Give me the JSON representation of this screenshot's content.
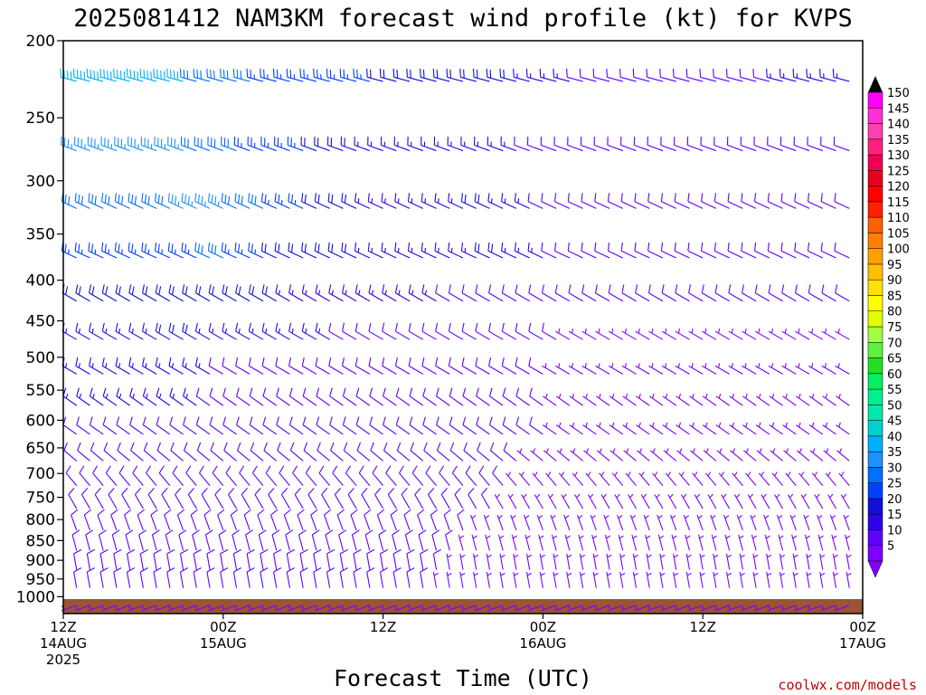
{
  "title": "2025081412 NAM3KM forecast wind profile (kt) for KVPS",
  "credit": "coolwx.com/models",
  "chart_data": {
    "type": "wind-barb time-height",
    "title": "2025081412 NAM3KM forecast wind profile (kt) for KVPS",
    "xlabel": "Forecast Time (UTC)",
    "ylabel": "",
    "units": "kt",
    "y_scale": "log-pressure (inverted)",
    "ylim": [
      1050,
      200
    ],
    "x_hours_range": [
      0,
      60
    ],
    "y_ticks": [
      200,
      250,
      300,
      350,
      400,
      450,
      500,
      550,
      600,
      650,
      700,
      750,
      800,
      850,
      900,
      950,
      1000
    ],
    "y_tick_labels": [
      "200",
      "250",
      "300",
      "350",
      "400",
      "450",
      "500",
      "550",
      "600",
      "650",
      "700",
      "750",
      "800",
      "850",
      "900",
      "950",
      "1000"
    ],
    "x_ticks": [
      {
        "hour": 0,
        "lines": [
          "12Z",
          "14AUG",
          "2025"
        ]
      },
      {
        "hour": 12,
        "lines": [
          "00Z",
          "15AUG"
        ]
      },
      {
        "hour": 24,
        "lines": [
          "12Z"
        ]
      },
      {
        "hour": 36,
        "lines": [
          "00Z",
          "16AUG"
        ]
      },
      {
        "hour": 48,
        "lines": [
          "12Z"
        ]
      },
      {
        "hour": 60,
        "lines": [
          "00Z",
          "17AUG"
        ]
      }
    ],
    "barb_times_hours": [
      1,
      2,
      3,
      4,
      5,
      6,
      7,
      8,
      9,
      10,
      11,
      12,
      13,
      14,
      15,
      16,
      17,
      18,
      19,
      20,
      21,
      22,
      23,
      24,
      25,
      26,
      27,
      28,
      29,
      30,
      31,
      32,
      33,
      34,
      35,
      36,
      37,
      38,
      39,
      40,
      41,
      42,
      43,
      44,
      45,
      46,
      47,
      48,
      49,
      50,
      51,
      52,
      53,
      54,
      55,
      56,
      57,
      58,
      59,
      60
    ],
    "barb_levels_hpa": [
      225,
      275,
      325,
      375,
      425,
      475,
      525,
      575,
      625,
      675,
      725,
      775,
      825,
      875,
      925,
      975,
      1025
    ],
    "colorbar": {
      "levels": [
        5,
        10,
        15,
        20,
        25,
        30,
        35,
        40,
        45,
        50,
        55,
        60,
        65,
        70,
        75,
        80,
        85,
        90,
        95,
        100,
        105,
        110,
        115,
        120,
        125,
        130,
        135,
        140,
        145,
        150
      ],
      "colors": [
        "#8000ff",
        "#6000ff",
        "#3000e8",
        "#1010d8",
        "#0040ff",
        "#0070ff",
        "#2090ff",
        "#00b0ff",
        "#00d0d0",
        "#00e8b0",
        "#00f090",
        "#00f060",
        "#20e020",
        "#60f040",
        "#a0ff40",
        "#e0ff00",
        "#ffff00",
        "#ffe000",
        "#ffc000",
        "#ffa000",
        "#ff8000",
        "#ff6000",
        "#ff2000",
        "#ff0000",
        "#e80020",
        "#f00050",
        "#ff2080",
        "#ff40b0",
        "#ff30d8",
        "#ff00ff"
      ]
    },
    "ground_color": "#995533",
    "levels": [
      {
        "p": 225,
        "dir": 285,
        "spd": [
          40,
          40,
          40,
          40,
          40,
          40,
          40,
          40,
          40,
          30,
          30,
          30,
          30,
          30,
          25,
          25,
          25,
          25,
          25,
          25,
          25,
          25,
          25,
          20,
          20,
          20,
          20,
          20,
          20,
          20,
          20,
          20,
          20,
          20,
          15,
          15,
          15,
          15,
          10,
          10,
          10,
          10,
          10,
          10,
          10,
          10,
          10,
          10,
          10,
          10,
          10,
          10,
          10,
          15,
          15,
          15,
          15,
          15,
          15,
          15
        ]
      },
      {
        "p": 275,
        "dir": 290,
        "spd": [
          35,
          35,
          35,
          35,
          35,
          35,
          35,
          35,
          35,
          30,
          30,
          30,
          30,
          25,
          25,
          25,
          25,
          25,
          20,
          20,
          20,
          20,
          15,
          15,
          15,
          15,
          15,
          15,
          15,
          15,
          15,
          15,
          15,
          15,
          10,
          10,
          10,
          10,
          10,
          10,
          10,
          10,
          10,
          10,
          10,
          10,
          10,
          10,
          10,
          10,
          10,
          10,
          10,
          10,
          10,
          10,
          10,
          10,
          10,
          10
        ]
      },
      {
        "p": 325,
        "dir": 295,
        "spd": [
          30,
          30,
          30,
          30,
          30,
          30,
          30,
          30,
          35,
          35,
          35,
          35,
          30,
          30,
          30,
          25,
          25,
          25,
          20,
          20,
          20,
          20,
          15,
          15,
          15,
          15,
          15,
          15,
          15,
          15,
          20,
          20,
          15,
          15,
          15,
          10,
          10,
          10,
          10,
          10,
          10,
          10,
          10,
          10,
          10,
          10,
          10,
          10,
          10,
          10,
          10,
          10,
          10,
          10,
          10,
          10,
          10,
          10,
          10,
          10
        ]
      },
      {
        "p": 375,
        "dir": 295,
        "spd": [
          25,
          25,
          25,
          25,
          25,
          25,
          25,
          25,
          25,
          25,
          30,
          30,
          25,
          25,
          25,
          20,
          20,
          20,
          20,
          20,
          20,
          20,
          15,
          15,
          15,
          15,
          15,
          15,
          15,
          15,
          15,
          20,
          20,
          15,
          15,
          15,
          10,
          10,
          10,
          10,
          10,
          10,
          10,
          10,
          10,
          10,
          10,
          10,
          10,
          10,
          10,
          10,
          10,
          10,
          10,
          10,
          10,
          10,
          10,
          10
        ]
      },
      {
        "p": 425,
        "dir": 300,
        "spd": [
          20,
          20,
          20,
          20,
          20,
          20,
          20,
          20,
          20,
          20,
          20,
          20,
          20,
          20,
          20,
          20,
          15,
          15,
          15,
          15,
          15,
          15,
          15,
          15,
          15,
          15,
          15,
          15,
          10,
          10,
          10,
          10,
          10,
          10,
          10,
          10,
          10,
          10,
          10,
          10,
          10,
          10,
          10,
          10,
          10,
          10,
          10,
          10,
          10,
          10,
          10,
          10,
          10,
          10,
          10,
          10,
          10,
          10,
          10,
          10
        ]
      },
      {
        "p": 475,
        "dir": 300,
        "spd": [
          15,
          15,
          15,
          15,
          15,
          15,
          15,
          20,
          20,
          20,
          15,
          15,
          15,
          15,
          15,
          15,
          15,
          15,
          15,
          15,
          10,
          10,
          10,
          10,
          10,
          10,
          10,
          10,
          10,
          10,
          10,
          10,
          10,
          10,
          10,
          10,
          10,
          5,
          5,
          5,
          5,
          5,
          5,
          5,
          5,
          5,
          5,
          5,
          5,
          5,
          5,
          5,
          5,
          5,
          5,
          5,
          5,
          5,
          5,
          5
        ]
      },
      {
        "p": 525,
        "dir": 300,
        "spd": [
          15,
          15,
          15,
          15,
          15,
          15,
          15,
          15,
          15,
          15,
          15,
          10,
          10,
          10,
          10,
          10,
          10,
          10,
          10,
          10,
          10,
          10,
          10,
          10,
          10,
          10,
          10,
          10,
          10,
          10,
          10,
          10,
          10,
          10,
          10,
          10,
          5,
          5,
          5,
          5,
          5,
          5,
          5,
          5,
          5,
          5,
          5,
          5,
          5,
          5,
          5,
          5,
          5,
          5,
          5,
          5,
          5,
          5,
          5,
          5
        ]
      },
      {
        "p": 575,
        "dir": 305,
        "spd": [
          15,
          15,
          15,
          15,
          15,
          15,
          15,
          15,
          15,
          15,
          10,
          10,
          10,
          10,
          10,
          10,
          10,
          10,
          10,
          10,
          10,
          10,
          10,
          10,
          10,
          10,
          10,
          10,
          10,
          10,
          10,
          10,
          10,
          10,
          10,
          10,
          5,
          5,
          5,
          5,
          5,
          5,
          5,
          5,
          5,
          5,
          5,
          5,
          5,
          5,
          5,
          5,
          5,
          5,
          5,
          5,
          5,
          5,
          5,
          5
        ]
      },
      {
        "p": 625,
        "dir": 305,
        "spd": [
          10,
          10,
          10,
          10,
          10,
          10,
          10,
          10,
          10,
          10,
          10,
          10,
          10,
          10,
          10,
          10,
          10,
          10,
          10,
          10,
          10,
          10,
          10,
          10,
          10,
          10,
          10,
          10,
          10,
          10,
          10,
          10,
          10,
          10,
          10,
          10,
          5,
          5,
          5,
          5,
          5,
          5,
          5,
          5,
          5,
          5,
          5,
          5,
          5,
          5,
          5,
          5,
          5,
          5,
          5,
          5,
          5,
          5,
          5,
          5
        ]
      },
      {
        "p": 675,
        "dir": 310,
        "spd": [
          10,
          10,
          10,
          10,
          10,
          10,
          10,
          10,
          10,
          10,
          10,
          10,
          10,
          10,
          10,
          10,
          10,
          10,
          10,
          10,
          10,
          10,
          10,
          10,
          10,
          10,
          10,
          10,
          10,
          10,
          10,
          10,
          10,
          10,
          5,
          5,
          5,
          5,
          5,
          5,
          5,
          5,
          5,
          5,
          5,
          5,
          5,
          5,
          5,
          5,
          5,
          5,
          5,
          5,
          5,
          5,
          5,
          5,
          5,
          5
        ]
      },
      {
        "p": 725,
        "dir": 320,
        "spd": [
          10,
          10,
          10,
          10,
          10,
          10,
          10,
          10,
          10,
          10,
          10,
          10,
          10,
          10,
          10,
          10,
          10,
          10,
          10,
          10,
          10,
          10,
          10,
          10,
          10,
          10,
          10,
          10,
          10,
          10,
          10,
          10,
          10,
          5,
          5,
          5,
          5,
          5,
          5,
          5,
          5,
          5,
          5,
          5,
          5,
          5,
          5,
          5,
          5,
          5,
          5,
          5,
          5,
          5,
          5,
          5,
          5,
          5,
          5,
          5
        ]
      },
      {
        "p": 775,
        "dir": 330,
        "spd": [
          10,
          10,
          10,
          10,
          10,
          10,
          10,
          10,
          10,
          10,
          10,
          10,
          10,
          10,
          10,
          10,
          10,
          10,
          10,
          10,
          10,
          10,
          10,
          10,
          10,
          10,
          10,
          10,
          10,
          10,
          10,
          10,
          5,
          5,
          5,
          5,
          5,
          5,
          5,
          5,
          5,
          5,
          5,
          5,
          5,
          5,
          5,
          5,
          5,
          5,
          5,
          5,
          5,
          5,
          5,
          5,
          5,
          5,
          5,
          5
        ]
      },
      {
        "p": 825,
        "dir": 340,
        "spd": [
          10,
          10,
          10,
          10,
          10,
          10,
          10,
          10,
          10,
          10,
          10,
          10,
          10,
          10,
          10,
          10,
          10,
          10,
          10,
          10,
          10,
          10,
          10,
          10,
          10,
          10,
          10,
          10,
          10,
          10,
          5,
          5,
          5,
          5,
          5,
          5,
          5,
          5,
          5,
          5,
          5,
          5,
          5,
          5,
          5,
          5,
          5,
          5,
          5,
          5,
          5,
          5,
          5,
          5,
          5,
          5,
          5,
          5,
          5,
          5
        ]
      },
      {
        "p": 875,
        "dir": 345,
        "spd": [
          10,
          10,
          10,
          10,
          10,
          10,
          10,
          10,
          10,
          10,
          10,
          10,
          10,
          10,
          10,
          10,
          10,
          10,
          10,
          10,
          10,
          10,
          10,
          10,
          10,
          10,
          10,
          10,
          10,
          5,
          5,
          5,
          5,
          5,
          5,
          5,
          5,
          5,
          5,
          5,
          5,
          5,
          5,
          5,
          5,
          5,
          5,
          5,
          5,
          5,
          5,
          5,
          5,
          5,
          5,
          5,
          5,
          5,
          5,
          5
        ]
      },
      {
        "p": 925,
        "dir": 350,
        "spd": [
          10,
          10,
          10,
          10,
          10,
          10,
          10,
          10,
          10,
          10,
          10,
          10,
          10,
          10,
          10,
          10,
          10,
          10,
          10,
          10,
          10,
          10,
          10,
          10,
          10,
          10,
          10,
          10,
          5,
          5,
          5,
          5,
          5,
          5,
          5,
          5,
          5,
          5,
          5,
          5,
          5,
          5,
          5,
          5,
          5,
          5,
          5,
          5,
          5,
          5,
          5,
          5,
          5,
          5,
          5,
          5,
          5,
          5,
          5,
          5
        ]
      },
      {
        "p": 975,
        "dir": 350,
        "spd": [
          10,
          10,
          10,
          10,
          10,
          10,
          10,
          10,
          10,
          10,
          10,
          10,
          10,
          10,
          10,
          10,
          10,
          10,
          10,
          10,
          10,
          10,
          10,
          10,
          10,
          10,
          10,
          5,
          5,
          5,
          5,
          5,
          5,
          5,
          5,
          5,
          5,
          5,
          5,
          5,
          5,
          5,
          5,
          5,
          5,
          5,
          5,
          5,
          5,
          5,
          5,
          5,
          5,
          5,
          5,
          5,
          5,
          5,
          5,
          5
        ]
      },
      {
        "p": 1025,
        "dir": 250,
        "spd": [
          5,
          5,
          5,
          5,
          5,
          5,
          5,
          5,
          5,
          5,
          5,
          5,
          5,
          5,
          5,
          5,
          5,
          5,
          5,
          5,
          5,
          5,
          5,
          5,
          5,
          5,
          5,
          5,
          5,
          5,
          5,
          5,
          5,
          5,
          5,
          5,
          5,
          5,
          5,
          5,
          5,
          5,
          5,
          5,
          5,
          5,
          5,
          5,
          5,
          5,
          5,
          5,
          5,
          5,
          5,
          5,
          5,
          5,
          5,
          5
        ]
      }
    ]
  }
}
